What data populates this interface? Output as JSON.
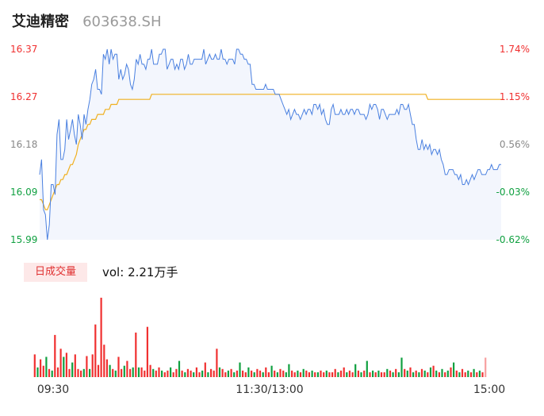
{
  "header": {
    "name": "艾迪精密",
    "code": "603638.SH"
  },
  "volume": {
    "badge_label": "日成交量",
    "vol_prefix": "vol:",
    "vol_value": "2.21万手"
  },
  "colors": {
    "up": "#f03030",
    "down": "#10a040",
    "price_line": "#4a80e0",
    "avg_line": "#f0b020",
    "fill": "#f3f6fd"
  },
  "chart_data": [
    {
      "type": "line",
      "title": "",
      "y_left_ticks": [
        "16.37",
        "16.27",
        "16.18",
        "16.09",
        "15.99"
      ],
      "y_right_ticks": [
        "1.74%",
        "1.15%",
        "0.56%",
        "-0.03%",
        "-0.62%"
      ],
      "ylim": [
        15.99,
        16.37
      ],
      "x_ticks": [
        "09:30",
        "11:30/13:00",
        "15:00"
      ],
      "series": [
        {
          "role": "price",
          "values": [
            16.12,
            16.15,
            16.05,
            16.04,
            15.99,
            16.02,
            16.1,
            16.1,
            16.08,
            16.2,
            16.23,
            16.15,
            16.15,
            16.17,
            16.23,
            16.19,
            16.21,
            16.23,
            16.2,
            16.18,
            16.24,
            16.22,
            16.19,
            16.24,
            16.22,
            16.25,
            16.27,
            16.3,
            16.31,
            16.33,
            16.29,
            16.29,
            16.28,
            16.36,
            16.35,
            16.37,
            16.34,
            16.37,
            16.35,
            16.36,
            16.36,
            16.31,
            16.33,
            16.31,
            16.32,
            16.34,
            16.33,
            16.3,
            16.29,
            16.31,
            16.35,
            16.34,
            16.36,
            16.34,
            16.34,
            16.33,
            16.35,
            16.35,
            16.37,
            16.34,
            16.34,
            16.34,
            16.36,
            16.36,
            16.37,
            16.37,
            16.33,
            16.34,
            16.35,
            16.35,
            16.33,
            16.34,
            16.33,
            16.35,
            16.35,
            16.33,
            16.34,
            16.36,
            16.34,
            16.34,
            16.35,
            16.35,
            16.35,
            16.35,
            16.35,
            16.37,
            16.34,
            16.35,
            16.36,
            16.35,
            16.35,
            16.36,
            16.35,
            16.35,
            16.37,
            16.35,
            16.35,
            16.34,
            16.35,
            16.35,
            16.35,
            16.34,
            16.37,
            16.37,
            16.36,
            16.36,
            16.35,
            16.35,
            16.34,
            16.34,
            16.3,
            16.3,
            16.29,
            16.29,
            16.29,
            16.29,
            16.29,
            16.3,
            16.29,
            16.29,
            16.29,
            16.29,
            16.28,
            16.28,
            16.28,
            16.27,
            16.26,
            16.25,
            16.24,
            16.25,
            16.23,
            16.24,
            16.25,
            16.24,
            16.24,
            16.23,
            16.24,
            16.25,
            16.24,
            16.25,
            16.25,
            16.24,
            16.26,
            16.26,
            16.25,
            16.26,
            16.24,
            16.25,
            16.23,
            16.22,
            16.22,
            16.25,
            16.26,
            16.24,
            16.24,
            16.24,
            16.25,
            16.24,
            16.24,
            16.25,
            16.24,
            16.25,
            16.25,
            16.24,
            16.25,
            16.25,
            16.24,
            16.24,
            16.24,
            16.23,
            16.24,
            16.26,
            16.25,
            16.26,
            16.26,
            16.25,
            16.23,
            16.25,
            16.25,
            16.24,
            16.23,
            16.24,
            16.24,
            16.24,
            16.24,
            16.25,
            16.24,
            16.26,
            16.26,
            16.25,
            16.25,
            16.26,
            16.24,
            16.22,
            16.22,
            16.19,
            16.17,
            16.17,
            16.19,
            16.17,
            16.18,
            16.17,
            16.18,
            16.16,
            16.17,
            16.17,
            16.16,
            16.17,
            16.15,
            16.14,
            16.12,
            16.12,
            16.13,
            16.13,
            16.13,
            16.12,
            16.12,
            16.11,
            16.12,
            16.1,
            16.1,
            16.11,
            16.1,
            16.11,
            16.12,
            16.11,
            16.12,
            16.13,
            16.13,
            16.12,
            16.12,
            16.12,
            16.13,
            16.13,
            16.14,
            16.13,
            16.13,
            16.13,
            16.14,
            16.14
          ]
        },
        {
          "role": "average",
          "values": [
            16.07,
            16.07,
            16.06,
            16.05,
            16.05,
            16.06,
            16.07,
            16.08,
            16.09,
            16.1,
            16.1,
            16.11,
            16.11,
            16.12,
            16.12,
            16.13,
            16.14,
            16.14,
            16.15,
            16.16,
            16.18,
            16.19,
            16.2,
            16.21,
            16.21,
            16.22,
            16.22,
            16.23,
            16.23,
            16.23,
            16.24,
            16.24,
            16.24,
            16.24,
            16.25,
            16.25,
            16.25,
            16.26,
            16.26,
            16.26,
            16.26,
            16.27,
            16.27,
            16.27,
            16.27,
            16.27,
            16.27,
            16.27,
            16.27,
            16.27,
            16.27,
            16.27,
            16.27,
            16.27,
            16.27,
            16.27,
            16.27,
            16.27,
            16.28,
            16.28,
            16.28,
            16.28,
            16.28,
            16.28,
            16.28,
            16.28,
            16.28,
            16.28,
            16.28,
            16.28,
            16.28,
            16.28,
            16.28,
            16.28,
            16.28,
            16.28,
            16.28,
            16.28,
            16.28,
            16.28,
            16.28,
            16.28,
            16.28,
            16.28,
            16.28,
            16.28,
            16.28,
            16.28,
            16.28,
            16.28,
            16.28,
            16.28,
            16.28,
            16.28,
            16.28,
            16.28,
            16.28,
            16.28,
            16.28,
            16.28,
            16.28,
            16.28,
            16.28,
            16.28,
            16.28,
            16.28,
            16.28,
            16.28,
            16.28,
            16.28,
            16.28,
            16.28,
            16.28,
            16.28,
            16.28,
            16.28,
            16.28,
            16.28,
            16.28,
            16.28,
            16.28,
            16.28,
            16.28,
            16.28,
            16.28,
            16.28,
            16.28,
            16.28,
            16.28,
            16.28,
            16.28,
            16.28,
            16.28,
            16.28,
            16.28,
            16.28,
            16.28,
            16.28,
            16.28,
            16.28,
            16.28,
            16.28,
            16.28,
            16.28,
            16.28,
            16.28,
            16.28,
            16.28,
            16.28,
            16.28,
            16.28,
            16.28,
            16.28,
            16.28,
            16.28,
            16.28,
            16.28,
            16.28,
            16.28,
            16.28,
            16.28,
            16.28,
            16.28,
            16.28,
            16.28,
            16.28,
            16.28,
            16.28,
            16.28,
            16.28,
            16.28,
            16.28,
            16.28,
            16.28,
            16.28,
            16.28,
            16.28,
            16.28,
            16.28,
            16.28,
            16.28,
            16.28,
            16.28,
            16.28,
            16.28,
            16.28,
            16.28,
            16.28,
            16.28,
            16.28,
            16.28,
            16.28,
            16.28,
            16.28,
            16.28,
            16.28,
            16.28,
            16.28,
            16.28,
            16.28,
            16.28,
            16.27,
            16.27,
            16.27,
            16.27,
            16.27,
            16.27,
            16.27,
            16.27,
            16.27,
            16.27,
            16.27,
            16.27,
            16.27,
            16.27,
            16.27,
            16.27,
            16.27,
            16.27,
            16.27,
            16.27,
            16.27,
            16.27,
            16.27,
            16.27,
            16.27,
            16.27,
            16.27,
            16.27,
            16.27,
            16.27,
            16.27,
            16.27,
            16.27,
            16.27,
            16.27,
            16.27,
            16.27,
            16.27,
            16.27,
            16.27
          ]
        }
      ]
    },
    {
      "type": "bar",
      "title": "",
      "bars": [
        {
          "v": 28,
          "d": "up"
        },
        {
          "v": 12,
          "d": "down"
        },
        {
          "v": 22,
          "d": "up"
        },
        {
          "v": 14,
          "d": "up"
        },
        {
          "v": 25,
          "d": "down"
        },
        {
          "v": 10,
          "d": "up"
        },
        {
          "v": 8,
          "d": "down"
        },
        {
          "v": 52,
          "d": "up"
        },
        {
          "v": 12,
          "d": "up"
        },
        {
          "v": 35,
          "d": "up"
        },
        {
          "v": 25,
          "d": "down"
        },
        {
          "v": 30,
          "d": "up"
        },
        {
          "v": 10,
          "d": "up"
        },
        {
          "v": 18,
          "d": "down"
        },
        {
          "v": 28,
          "d": "up"
        },
        {
          "v": 10,
          "d": "up"
        },
        {
          "v": 8,
          "d": "up"
        },
        {
          "v": 10,
          "d": "down"
        },
        {
          "v": 26,
          "d": "up"
        },
        {
          "v": 10,
          "d": "down"
        },
        {
          "v": 28,
          "d": "up"
        },
        {
          "v": 65,
          "d": "up"
        },
        {
          "v": 15,
          "d": "up"
        },
        {
          "v": 98,
          "d": "up"
        },
        {
          "v": 40,
          "d": "up"
        },
        {
          "v": 22,
          "d": "up"
        },
        {
          "v": 15,
          "d": "down"
        },
        {
          "v": 10,
          "d": "up"
        },
        {
          "v": 8,
          "d": "down"
        },
        {
          "v": 25,
          "d": "up"
        },
        {
          "v": 10,
          "d": "up"
        },
        {
          "v": 14,
          "d": "down"
        },
        {
          "v": 20,
          "d": "up"
        },
        {
          "v": 10,
          "d": "up"
        },
        {
          "v": 12,
          "d": "down"
        },
        {
          "v": 55,
          "d": "up"
        },
        {
          "v": 12,
          "d": "down"
        },
        {
          "v": 12,
          "d": "up"
        },
        {
          "v": 8,
          "d": "up"
        },
        {
          "v": 62,
          "d": "up"
        },
        {
          "v": 15,
          "d": "up"
        },
        {
          "v": 10,
          "d": "down"
        },
        {
          "v": 8,
          "d": "up"
        },
        {
          "v": 12,
          "d": "up"
        },
        {
          "v": 8,
          "d": "down"
        },
        {
          "v": 6,
          "d": "up"
        },
        {
          "v": 8,
          "d": "up"
        },
        {
          "v": 12,
          "d": "down"
        },
        {
          "v": 6,
          "d": "up"
        },
        {
          "v": 10,
          "d": "up"
        },
        {
          "v": 20,
          "d": "down"
        },
        {
          "v": 8,
          "d": "up"
        },
        {
          "v": 6,
          "d": "down"
        },
        {
          "v": 10,
          "d": "up"
        },
        {
          "v": 8,
          "d": "up"
        },
        {
          "v": 6,
          "d": "down"
        },
        {
          "v": 12,
          "d": "up"
        },
        {
          "v": 6,
          "d": "up"
        },
        {
          "v": 8,
          "d": "down"
        },
        {
          "v": 18,
          "d": "up"
        },
        {
          "v": 6,
          "d": "down"
        },
        {
          "v": 10,
          "d": "up"
        },
        {
          "v": 8,
          "d": "up"
        },
        {
          "v": 35,
          "d": "up"
        },
        {
          "v": 12,
          "d": "down"
        },
        {
          "v": 10,
          "d": "up"
        },
        {
          "v": 6,
          "d": "up"
        },
        {
          "v": 8,
          "d": "down"
        },
        {
          "v": 10,
          "d": "up"
        },
        {
          "v": 6,
          "d": "down"
        },
        {
          "v": 8,
          "d": "up"
        },
        {
          "v": 18,
          "d": "down"
        },
        {
          "v": 8,
          "d": "up"
        },
        {
          "v": 6,
          "d": "up"
        },
        {
          "v": 12,
          "d": "down"
        },
        {
          "v": 8,
          "d": "up"
        },
        {
          "v": 6,
          "d": "down"
        },
        {
          "v": 10,
          "d": "up"
        },
        {
          "v": 8,
          "d": "up"
        },
        {
          "v": 6,
          "d": "down"
        },
        {
          "v": 12,
          "d": "up"
        },
        {
          "v": 6,
          "d": "up"
        },
        {
          "v": 14,
          "d": "down"
        },
        {
          "v": 8,
          "d": "up"
        },
        {
          "v": 6,
          "d": "down"
        },
        {
          "v": 10,
          "d": "up"
        },
        {
          "v": 8,
          "d": "up"
        },
        {
          "v": 6,
          "d": "down"
        },
        {
          "v": 16,
          "d": "down"
        },
        {
          "v": 8,
          "d": "up"
        },
        {
          "v": 6,
          "d": "up"
        },
        {
          "v": 8,
          "d": "down"
        },
        {
          "v": 6,
          "d": "up"
        },
        {
          "v": 10,
          "d": "down"
        },
        {
          "v": 8,
          "d": "up"
        },
        {
          "v": 6,
          "d": "up"
        },
        {
          "v": 8,
          "d": "down"
        },
        {
          "v": 6,
          "d": "up"
        },
        {
          "v": 6,
          "d": "down"
        },
        {
          "v": 8,
          "d": "up"
        },
        {
          "v": 6,
          "d": "up"
        },
        {
          "v": 8,
          "d": "down"
        },
        {
          "v": 6,
          "d": "up"
        },
        {
          "v": 6,
          "d": "up"
        },
        {
          "v": 10,
          "d": "up"
        },
        {
          "v": 6,
          "d": "down"
        },
        {
          "v": 8,
          "d": "up"
        },
        {
          "v": 12,
          "d": "up"
        },
        {
          "v": 6,
          "d": "down"
        },
        {
          "v": 8,
          "d": "up"
        },
        {
          "v": 6,
          "d": "up"
        },
        {
          "v": 16,
          "d": "down"
        },
        {
          "v": 8,
          "d": "up"
        },
        {
          "v": 6,
          "d": "down"
        },
        {
          "v": 8,
          "d": "up"
        },
        {
          "v": 20,
          "d": "down"
        },
        {
          "v": 6,
          "d": "up"
        },
        {
          "v": 8,
          "d": "down"
        },
        {
          "v": 6,
          "d": "up"
        },
        {
          "v": 8,
          "d": "down"
        },
        {
          "v": 6,
          "d": "up"
        },
        {
          "v": 6,
          "d": "up"
        },
        {
          "v": 10,
          "d": "down"
        },
        {
          "v": 8,
          "d": "up"
        },
        {
          "v": 6,
          "d": "down"
        },
        {
          "v": 10,
          "d": "up"
        },
        {
          "v": 6,
          "d": "down"
        },
        {
          "v": 24,
          "d": "down"
        },
        {
          "v": 10,
          "d": "up"
        },
        {
          "v": 8,
          "d": "down"
        },
        {
          "v": 12,
          "d": "up"
        },
        {
          "v": 6,
          "d": "down"
        },
        {
          "v": 8,
          "d": "up"
        },
        {
          "v": 6,
          "d": "down"
        },
        {
          "v": 10,
          "d": "up"
        },
        {
          "v": 8,
          "d": "down"
        },
        {
          "v": 6,
          "d": "up"
        },
        {
          "v": 12,
          "d": "down"
        },
        {
          "v": 14,
          "d": "up"
        },
        {
          "v": 8,
          "d": "down"
        },
        {
          "v": 6,
          "d": "up"
        },
        {
          "v": 10,
          "d": "down"
        },
        {
          "v": 6,
          "d": "up"
        },
        {
          "v": 8,
          "d": "down"
        },
        {
          "v": 12,
          "d": "up"
        },
        {
          "v": 18,
          "d": "down"
        },
        {
          "v": 8,
          "d": "up"
        },
        {
          "v": 6,
          "d": "down"
        },
        {
          "v": 10,
          "d": "up"
        },
        {
          "v": 6,
          "d": "up"
        },
        {
          "v": 8,
          "d": "down"
        },
        {
          "v": 6,
          "d": "up"
        },
        {
          "v": 10,
          "d": "down"
        },
        {
          "v": 6,
          "d": "up"
        },
        {
          "v": 8,
          "d": "down"
        },
        {
          "v": 6,
          "d": "up"
        },
        {
          "v": 24,
          "d": "up"
        }
      ]
    }
  ]
}
